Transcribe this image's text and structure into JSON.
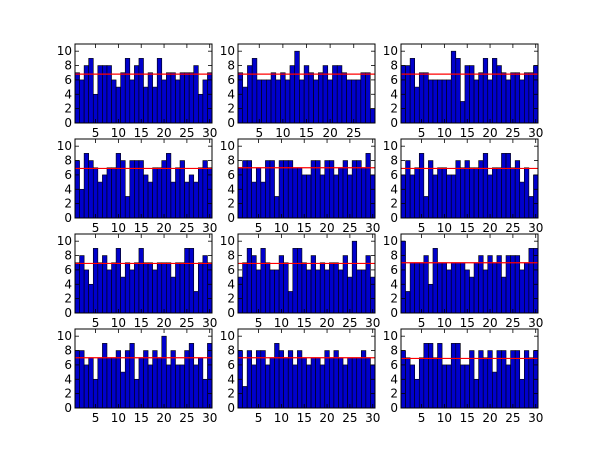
{
  "figure": {
    "background": "#ffffff",
    "bar_color": "#0000cc",
    "bar_edge_color": "#000000",
    "mean_line_color": "#ff0000"
  },
  "chart_data": [
    {
      "type": "bar",
      "x": [
        1,
        2,
        3,
        4,
        5,
        6,
        7,
        8,
        9,
        10,
        11,
        12,
        13,
        14,
        15,
        16,
        17,
        18,
        19,
        20,
        21,
        22,
        23,
        24,
        25,
        26,
        27,
        28,
        29,
        30
      ],
      "values": [
        7,
        6,
        8,
        9,
        4,
        8,
        8,
        8,
        6,
        5,
        7,
        9,
        6,
        8,
        9,
        5,
        7,
        5,
        9,
        6,
        7,
        7,
        6,
        7,
        7,
        7,
        8,
        4,
        6,
        7
      ],
      "mean": 6.8,
      "ylim": [
        0,
        11
      ],
      "yticks": [
        0,
        2,
        4,
        6,
        8,
        10
      ],
      "xlim": [
        0.5,
        30.5
      ],
      "xticks": [
        5,
        10,
        15,
        20,
        25,
        30
      ]
    },
    {
      "type": "bar",
      "x": [
        1,
        2,
        3,
        4,
        5,
        6,
        7,
        8,
        9,
        10,
        11,
        12,
        13,
        14,
        15,
        16,
        17,
        18,
        19,
        20,
        21,
        22,
        23,
        24,
        25,
        26,
        27,
        28,
        29
      ],
      "values": [
        7,
        5,
        8,
        9,
        6,
        6,
        6,
        7,
        6,
        7,
        6,
        8,
        10,
        6,
        8,
        7,
        6,
        7,
        8,
        6,
        8,
        8,
        7,
        6,
        6,
        6,
        7,
        7,
        2
      ],
      "mean": 6.8,
      "ylim": [
        0,
        11
      ],
      "yticks": [
        0,
        2,
        4,
        6,
        8,
        10
      ],
      "xlim": [
        0.5,
        29.5
      ],
      "xticks": [
        5,
        10,
        15,
        20,
        25
      ]
    },
    {
      "type": "bar",
      "x": [
        1,
        2,
        3,
        4,
        5,
        6,
        7,
        8,
        9,
        10,
        11,
        12,
        13,
        14,
        15,
        16,
        17,
        18,
        19,
        20,
        21,
        22,
        23,
        24,
        25,
        26,
        27,
        28,
        29,
        30
      ],
      "values": [
        8,
        8,
        9,
        5,
        7,
        7,
        6,
        6,
        6,
        6,
        6,
        10,
        9,
        3,
        8,
        8,
        6,
        7,
        9,
        6,
        9,
        8,
        7,
        6,
        7,
        7,
        6,
        7,
        7,
        8
      ],
      "mean": 6.8,
      "ylim": [
        0,
        11
      ],
      "yticks": [
        0,
        2,
        4,
        6,
        8,
        10
      ],
      "xlim": [
        0.5,
        30.5
      ],
      "xticks": [
        5,
        10,
        15,
        20,
        25,
        30
      ]
    },
    {
      "type": "bar",
      "x": [
        1,
        2,
        3,
        4,
        5,
        6,
        7,
        8,
        9,
        10,
        11,
        12,
        13,
        14,
        15,
        16,
        17,
        18,
        19,
        20,
        21,
        22,
        23,
        24,
        25,
        26,
        27,
        28,
        29,
        30
      ],
      "values": [
        8,
        4,
        9,
        8,
        7,
        5,
        6,
        7,
        7,
        9,
        8,
        3,
        8,
        8,
        8,
        6,
        5,
        7,
        7,
        8,
        9,
        5,
        7,
        8,
        5,
        6,
        5,
        7,
        8,
        7
      ],
      "mean": 6.9,
      "ylim": [
        0,
        11
      ],
      "yticks": [
        0,
        2,
        4,
        6,
        8,
        10
      ],
      "xlim": [
        0.5,
        30.5
      ],
      "xticks": [
        5,
        10,
        15,
        20,
        25,
        30
      ]
    },
    {
      "type": "bar",
      "x": [
        1,
        2,
        3,
        4,
        5,
        6,
        7,
        8,
        9,
        10,
        11,
        12,
        13,
        14,
        15,
        16,
        17,
        18,
        19,
        20,
        21,
        22,
        23,
        24,
        25,
        26,
        27,
        28,
        29,
        30
      ],
      "values": [
        7,
        8,
        8,
        5,
        7,
        5,
        8,
        8,
        3,
        8,
        8,
        8,
        7,
        7,
        6,
        6,
        8,
        8,
        6,
        8,
        8,
        6,
        7,
        8,
        6,
        8,
        8,
        7,
        9,
        6
      ],
      "mean": 7.0,
      "ylim": [
        0,
        11
      ],
      "yticks": [
        0,
        2,
        4,
        6,
        8,
        10
      ],
      "xlim": [
        0.5,
        30.5
      ],
      "xticks": [
        5,
        10,
        15,
        20,
        25,
        30
      ]
    },
    {
      "type": "bar",
      "x": [
        1,
        2,
        3,
        4,
        5,
        6,
        7,
        8,
        9,
        10,
        11,
        12,
        13,
        14,
        15,
        16,
        17,
        18,
        19,
        20,
        21,
        22,
        23,
        24,
        25,
        26,
        27,
        28,
        29,
        30
      ],
      "values": [
        6,
        8,
        6,
        7,
        9,
        3,
        8,
        6,
        7,
        7,
        6,
        6,
        8,
        7,
        8,
        7,
        7,
        8,
        9,
        6,
        7,
        7,
        9,
        9,
        7,
        8,
        5,
        7,
        3,
        6
      ],
      "mean": 6.9,
      "ylim": [
        0,
        11
      ],
      "yticks": [
        0,
        2,
        4,
        6,
        8,
        10
      ],
      "xlim": [
        0.5,
        30.5
      ],
      "xticks": [
        5,
        10,
        15,
        20,
        25,
        30
      ]
    },
    {
      "type": "bar",
      "x": [
        1,
        2,
        3,
        4,
        5,
        6,
        7,
        8,
        9,
        10,
        11,
        12,
        13,
        14,
        15,
        16,
        17,
        18,
        19,
        20,
        21,
        22,
        23,
        24,
        25,
        26,
        27,
        28,
        29,
        30
      ],
      "values": [
        7,
        8,
        6,
        4,
        9,
        7,
        8,
        6,
        7,
        9,
        5,
        7,
        6,
        7,
        9,
        7,
        7,
        6,
        7,
        7,
        7,
        5,
        7,
        7,
        9,
        9,
        3,
        7,
        8,
        7
      ],
      "mean": 6.9,
      "ylim": [
        0,
        11
      ],
      "yticks": [
        0,
        2,
        4,
        6,
        8,
        10
      ],
      "xlim": [
        0.5,
        30.5
      ],
      "xticks": [
        5,
        10,
        15,
        20,
        25,
        30
      ]
    },
    {
      "type": "bar",
      "x": [
        1,
        2,
        3,
        4,
        5,
        6,
        7,
        8,
        9,
        10,
        11,
        12,
        13,
        14,
        15,
        16,
        17,
        18,
        19,
        20,
        21,
        22,
        23,
        24,
        25,
        26,
        27,
        28,
        29,
        30
      ],
      "values": [
        5,
        7,
        9,
        8,
        6,
        9,
        7,
        6,
        6,
        8,
        7,
        3,
        9,
        9,
        7,
        6,
        8,
        6,
        7,
        6,
        7,
        7,
        6,
        8,
        5,
        10,
        6,
        6,
        8,
        5
      ],
      "mean": 6.9,
      "ylim": [
        0,
        11
      ],
      "yticks": [
        0,
        2,
        4,
        6,
        8,
        10
      ],
      "xlim": [
        0.5,
        30.5
      ],
      "xticks": [
        5,
        10,
        15,
        20,
        25,
        30
      ]
    },
    {
      "type": "bar",
      "x": [
        1,
        2,
        3,
        4,
        5,
        6,
        7,
        8,
        9,
        10,
        11,
        12,
        13,
        14,
        15,
        16,
        17,
        18,
        19,
        20,
        21,
        22,
        23,
        24,
        25,
        26,
        27,
        28,
        29,
        30
      ],
      "values": [
        10,
        3,
        7,
        7,
        7,
        8,
        4,
        9,
        7,
        7,
        6,
        7,
        7,
        7,
        6,
        5,
        7,
        8,
        6,
        8,
        7,
        8,
        5,
        8,
        8,
        8,
        6,
        7,
        9,
        9
      ],
      "mean": 7.0,
      "ylim": [
        0,
        11
      ],
      "yticks": [
        0,
        2,
        4,
        6,
        8,
        10
      ],
      "xlim": [
        0.5,
        30.5
      ],
      "xticks": [
        5,
        10,
        15,
        20,
        25,
        30
      ]
    },
    {
      "type": "bar",
      "x": [
        1,
        2,
        3,
        4,
        5,
        6,
        7,
        8,
        9,
        10,
        11,
        12,
        13,
        14,
        15,
        16,
        17,
        18,
        19,
        20,
        21,
        22,
        23,
        24,
        25,
        26,
        27,
        28,
        29,
        30
      ],
      "values": [
        8,
        8,
        6,
        7,
        4,
        7,
        9,
        7,
        7,
        8,
        5,
        8,
        9,
        4,
        7,
        8,
        6,
        8,
        7,
        10,
        6,
        8,
        6,
        6,
        8,
        9,
        6,
        7,
        4,
        9
      ],
      "mean": 7.0,
      "ylim": [
        0,
        11
      ],
      "yticks": [
        0,
        2,
        4,
        6,
        8,
        10
      ],
      "xlim": [
        0.5,
        30.5
      ],
      "xticks": [
        5,
        10,
        15,
        20,
        25,
        30
      ]
    },
    {
      "type": "bar",
      "x": [
        1,
        2,
        3,
        4,
        5,
        6,
        7,
        8,
        9,
        10,
        11,
        12,
        13,
        14,
        15,
        16,
        17,
        18,
        19,
        20,
        21,
        22,
        23,
        24,
        25,
        26,
        27,
        28,
        29,
        30
      ],
      "values": [
        8,
        3,
        8,
        6,
        8,
        8,
        6,
        7,
        9,
        8,
        7,
        8,
        6,
        8,
        7,
        6,
        7,
        7,
        6,
        8,
        7,
        8,
        7,
        6,
        7,
        7,
        7,
        8,
        7,
        6
      ],
      "mean": 7.0,
      "ylim": [
        0,
        11
      ],
      "yticks": [
        0,
        2,
        4,
        6,
        8,
        10
      ],
      "xlim": [
        0.5,
        30.5
      ],
      "xticks": [
        5,
        10,
        15,
        20,
        25,
        30
      ]
    },
    {
      "type": "bar",
      "x": [
        1,
        2,
        3,
        4,
        5,
        6,
        7,
        8,
        9,
        10,
        11,
        12,
        13,
        14,
        15,
        16,
        17,
        18,
        19,
        20,
        21,
        22,
        23,
        24,
        25,
        26,
        27,
        28,
        29,
        30
      ],
      "values": [
        8,
        7,
        6,
        4,
        7,
        9,
        9,
        7,
        9,
        6,
        6,
        9,
        9,
        6,
        6,
        8,
        4,
        8,
        7,
        8,
        5,
        8,
        8,
        6,
        8,
        8,
        4,
        8,
        7,
        8
      ],
      "mean": 6.9,
      "ylim": [
        0,
        11
      ],
      "yticks": [
        0,
        2,
        4,
        6,
        8,
        10
      ],
      "xlim": [
        0.5,
        30.5
      ],
      "xticks": [
        5,
        10,
        15,
        20,
        25,
        30
      ]
    }
  ]
}
